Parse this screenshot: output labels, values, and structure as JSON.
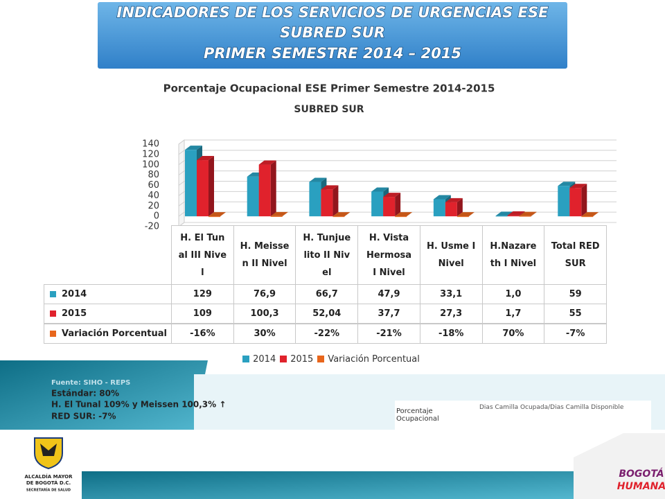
{
  "header": {
    "title": [
      "INDICADORES DE LOS SERVICIOS DE URGENCIAS ESE",
      "SUBRED  SUR",
      "PRIMER SEMESTRE 2014 – 2015"
    ]
  },
  "chart_data": {
    "type": "bar3d",
    "title": "Porcentaje Ocupacional ESE Primer Semestre 2014-2015",
    "subtitle": "SUBRED SUR",
    "categories": [
      "H. El Tunal III Nivel",
      "H. Meissen II Nivel",
      "H. Tunjuelito II Nivel",
      "H. Vista Hermosa I Nivel",
      "H. Usme I Nivel",
      "H.Nazareth I Nivel",
      "Total RED SUR"
    ],
    "series": [
      {
        "name": "2014",
        "color": "#2aa0c0",
        "values": [
          129,
          76.9,
          66.7,
          47.9,
          33.1,
          1.0,
          59
        ],
        "value_labels": [
          "129",
          "76,9",
          "66,7",
          "47,9",
          "33,1",
          "1,0",
          "59"
        ]
      },
      {
        "name": "2015",
        "color": "#e0222c",
        "values": [
          109,
          100.3,
          52.04,
          37.7,
          27.3,
          1.7,
          55
        ],
        "value_labels": [
          "109",
          "100,3",
          "52,04",
          "37,7",
          "27,3",
          "1,7",
          "55"
        ]
      },
      {
        "name": "Variación Porcentual",
        "color": "#e8661c",
        "values": [
          -0.16,
          0.3,
          -0.22,
          -0.21,
          -0.18,
          0.7,
          -0.07
        ],
        "value_labels": [
          "-16%",
          "30%",
          "-22%",
          "-21%",
          "-18%",
          "70%",
          "-7%"
        ]
      }
    ],
    "ylim": [
      -20,
      140
    ],
    "yticks": [
      -20,
      0,
      20,
      40,
      60,
      80,
      100,
      120,
      140
    ],
    "grid": true,
    "legend": "bottom"
  },
  "notes": [
    "Fuente: SIHO - REPS",
    "Estándar: 80%",
    "H. El Tunal 109% y Meissen 100,3% ↑",
    "RED SUR: -7%"
  ],
  "definition": {
    "term": "Porcentaje Ocupacional",
    "formula": "Dias Camilla Ocupada/Dias Camilla Disponible"
  },
  "logos": {
    "left": [
      "ALCALDÍA MAYOR",
      "DE BOGOTÁ D.C.",
      "SECRETARÍA DE SALUD"
    ],
    "right": [
      "BOGOTÁ",
      "HUMANA"
    ]
  }
}
